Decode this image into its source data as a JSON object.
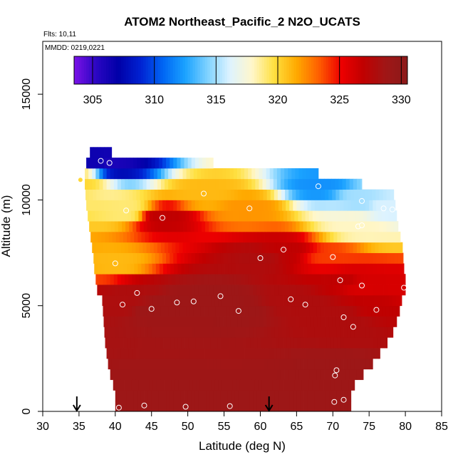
{
  "chart_data": {
    "type": "heatmap",
    "title": "ATOM2 Northeast_Pacific_2 N2O_UCATS",
    "annotations": [
      "Flts: 10,11",
      "MMDD: 0219,0221"
    ],
    "xlabel": "Latitude (deg N)",
    "ylabel": "Altitude (m)",
    "xlim": [
      30,
      85
    ],
    "ylim": [
      0,
      17500
    ],
    "x_ticks": [
      30,
      35,
      40,
      45,
      50,
      55,
      60,
      65,
      70,
      75,
      80,
      85
    ],
    "y_ticks": [
      0,
      5000,
      10000,
      15000
    ],
    "grid": false,
    "colorbar": {
      "placement": "top-inside",
      "range": [
        303.5,
        330.5
      ],
      "ticks": [
        305,
        310,
        315,
        320,
        325,
        330
      ],
      "colors": [
        "#7b12e8",
        "#2a06c2",
        "#0000a8",
        "#0022d2",
        "#0066f4",
        "#1aa2ff",
        "#7fd2ff",
        "#ddf3ff",
        "#fff7cc",
        "#ffe040",
        "#ffaa00",
        "#ff6000",
        "#ee0000",
        "#c10000",
        "#a01616",
        "#8b1a1a"
      ]
    },
    "field": {
      "rows_altitude_m": [
        0,
        500,
        1000,
        1500,
        2000,
        2500,
        3000,
        3500,
        4000,
        4500,
        5000,
        5500,
        6000,
        6500,
        7000,
        7500,
        8000,
        8500,
        9000,
        9500,
        10000,
        10500,
        11000,
        11500,
        12000
      ],
      "lat_min": [
        40,
        40,
        39.7,
        39.3,
        39,
        38.8,
        38.6,
        38.5,
        38.4,
        38.3,
        38.2,
        37.5,
        37.3,
        37.1,
        37,
        36.8,
        36.6,
        36.4,
        36.2,
        36,
        35.9,
        35.8,
        35.8,
        36,
        36.5
      ],
      "lat_max": [
        72.5,
        72.5,
        73,
        74.2,
        75.5,
        76.5,
        77.5,
        78.3,
        78.8,
        79.2,
        79.5,
        80,
        80,
        79.8,
        79.7,
        79.6,
        79.3,
        79,
        78.8,
        78.6,
        78.4,
        74,
        68,
        53.5,
        39.5
      ]
    },
    "points": [
      {
        "lat": 38.0,
        "alt_m": 11850,
        "value": 306.5
      },
      {
        "lat": 39.2,
        "alt_m": 11750,
        "value": 306
      },
      {
        "lat": 35.2,
        "alt_m": 10950,
        "value": 320
      },
      {
        "lat": 68.0,
        "alt_m": 10650,
        "value": 312
      },
      {
        "lat": 52.2,
        "alt_m": 10300,
        "value": 321
      },
      {
        "lat": 74.0,
        "alt_m": 9950,
        "value": 315
      },
      {
        "lat": 41.5,
        "alt_m": 9500,
        "value": 319
      },
      {
        "lat": 58.5,
        "alt_m": 9600,
        "value": 322
      },
      {
        "lat": 77.0,
        "alt_m": 9600,
        "value": 316
      },
      {
        "lat": 78.2,
        "alt_m": 9550,
        "value": 316
      },
      {
        "lat": 46.5,
        "alt_m": 9150,
        "value": 327
      },
      {
        "lat": 73.5,
        "alt_m": 8750,
        "value": 318
      },
      {
        "lat": 74.0,
        "alt_m": 8800,
        "value": 318
      },
      {
        "lat": 63.2,
        "alt_m": 7650,
        "value": 327
      },
      {
        "lat": 60.0,
        "alt_m": 7250,
        "value": 328
      },
      {
        "lat": 70.0,
        "alt_m": 7300,
        "value": 324
      },
      {
        "lat": 40.0,
        "alt_m": 7000,
        "value": 321
      },
      {
        "lat": 71.0,
        "alt_m": 6200,
        "value": 327
      },
      {
        "lat": 74.0,
        "alt_m": 5950,
        "value": 326
      },
      {
        "lat": 79.8,
        "alt_m": 5850,
        "value": 326
      },
      {
        "lat": 43.0,
        "alt_m": 5600,
        "value": 328
      },
      {
        "lat": 54.5,
        "alt_m": 5450,
        "value": 329
      },
      {
        "lat": 41.0,
        "alt_m": 5050,
        "value": 328
      },
      {
        "lat": 48.5,
        "alt_m": 5150,
        "value": 329
      },
      {
        "lat": 50.8,
        "alt_m": 5200,
        "value": 329
      },
      {
        "lat": 64.2,
        "alt_m": 5300,
        "value": 328
      },
      {
        "lat": 66.2,
        "alt_m": 5050,
        "value": 328
      },
      {
        "lat": 45.0,
        "alt_m": 4850,
        "value": 329
      },
      {
        "lat": 57.0,
        "alt_m": 4750,
        "value": 329
      },
      {
        "lat": 76.0,
        "alt_m": 4800,
        "value": 327
      },
      {
        "lat": 71.5,
        "alt_m": 4450,
        "value": 328
      },
      {
        "lat": 72.8,
        "alt_m": 4000,
        "value": 328
      },
      {
        "lat": 70.5,
        "alt_m": 1950,
        "value": 329
      },
      {
        "lat": 70.3,
        "alt_m": 1700,
        "value": 329
      },
      {
        "lat": 40.5,
        "alt_m": 180,
        "value": 329
      },
      {
        "lat": 44.0,
        "alt_m": 280,
        "value": 329
      },
      {
        "lat": 49.7,
        "alt_m": 220,
        "value": 329
      },
      {
        "lat": 55.8,
        "alt_m": 250,
        "value": 329
      },
      {
        "lat": 70.2,
        "alt_m": 450,
        "value": 329
      },
      {
        "lat": 71.5,
        "alt_m": 550,
        "value": 329
      }
    ],
    "arrows_lat": [
      34.7,
      61.2
    ]
  }
}
